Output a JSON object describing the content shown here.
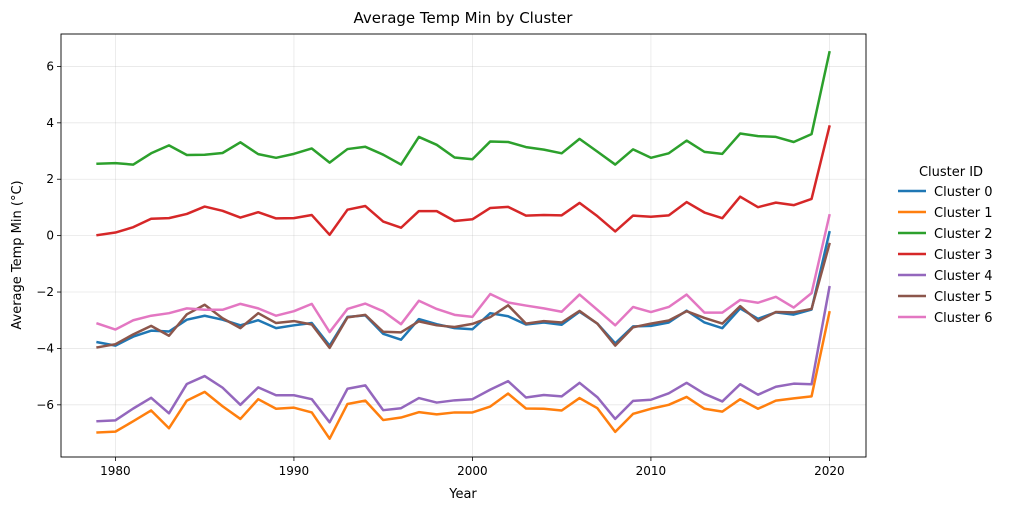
{
  "chart_data": {
    "type": "line",
    "title": "Average Temp Min by Cluster",
    "xlabel": "Year",
    "ylabel": "Average Temp Min (°C)",
    "xlim": [
      1976.95,
      2022.05
    ],
    "ylim": [
      -7.85,
      7.15
    ],
    "xticks": [
      1980,
      1990,
      2000,
      2010,
      2020
    ],
    "yticks": [
      -6,
      -4,
      -2,
      0,
      2,
      4,
      6
    ],
    "grid": true,
    "legend": {
      "title": "Cluster ID",
      "placement": "right-outside"
    },
    "x": [
      1979,
      1980,
      1981,
      1982,
      1983,
      1984,
      1985,
      1986,
      1987,
      1988,
      1989,
      1990,
      1991,
      1992,
      1993,
      1994,
      1995,
      1996,
      1997,
      1998,
      1999,
      2000,
      2001,
      2002,
      2003,
      2004,
      2005,
      2006,
      2007,
      2008,
      2009,
      2010,
      2011,
      2012,
      2013,
      2014,
      2015,
      2016,
      2017,
      2018,
      2019,
      2020
    ],
    "series": [
      {
        "name": "Cluster 0",
        "color": "#1f77b4",
        "values": [
          -3.78,
          -3.9,
          -3.58,
          -3.37,
          -3.4,
          -2.98,
          -2.84,
          -2.98,
          -3.18,
          -3.0,
          -3.28,
          -3.18,
          -3.1,
          -3.9,
          -2.88,
          -2.83,
          -3.48,
          -3.69,
          -2.96,
          -3.14,
          -3.28,
          -3.32,
          -2.75,
          -2.86,
          -3.15,
          -3.08,
          -3.16,
          -2.7,
          -3.12,
          -3.82,
          -3.22,
          -3.2,
          -3.08,
          -2.66,
          -3.08,
          -3.28,
          -2.58,
          -2.95,
          -2.72,
          -2.8,
          -2.62,
          0.12
        ]
      },
      {
        "name": "Cluster 1",
        "color": "#ff7f0e",
        "values": [
          -6.98,
          -6.95,
          -6.58,
          -6.2,
          -6.83,
          -5.85,
          -5.54,
          -6.05,
          -6.5,
          -5.8,
          -6.14,
          -6.1,
          -6.27,
          -7.2,
          -5.97,
          -5.85,
          -6.54,
          -6.45,
          -6.26,
          -6.34,
          -6.27,
          -6.27,
          -6.06,
          -5.6,
          -6.13,
          -6.14,
          -6.2,
          -5.76,
          -6.12,
          -6.96,
          -6.32,
          -6.14,
          -6.0,
          -5.72,
          -6.14,
          -6.24,
          -5.8,
          -6.14,
          -5.85,
          -5.77,
          -5.7,
          -2.72
        ]
      },
      {
        "name": "Cluster 2",
        "color": "#2ca02c",
        "values": [
          2.55,
          2.57,
          2.52,
          2.92,
          3.2,
          2.86,
          2.87,
          2.93,
          3.31,
          2.89,
          2.76,
          2.9,
          3.09,
          2.59,
          3.07,
          3.15,
          2.87,
          2.52,
          3.5,
          3.22,
          2.77,
          2.71,
          3.34,
          3.32,
          3.14,
          3.05,
          2.92,
          3.43,
          2.98,
          2.52,
          3.06,
          2.76,
          2.92,
          3.37,
          2.97,
          2.9,
          3.62,
          3.53,
          3.5,
          3.32,
          3.6,
          6.5
        ]
      },
      {
        "name": "Cluster 3",
        "color": "#d62728",
        "values": [
          0.02,
          0.11,
          0.3,
          0.6,
          0.62,
          0.77,
          1.03,
          0.88,
          0.64,
          0.83,
          0.61,
          0.62,
          0.73,
          0.03,
          0.92,
          1.05,
          0.5,
          0.28,
          0.87,
          0.87,
          0.52,
          0.58,
          0.98,
          1.02,
          0.71,
          0.73,
          0.72,
          1.16,
          0.69,
          0.15,
          0.71,
          0.67,
          0.72,
          1.19,
          0.82,
          0.62,
          1.38,
          1.01,
          1.17,
          1.08,
          1.3,
          3.87
        ]
      },
      {
        "name": "Cluster 4",
        "color": "#9467bd",
        "values": [
          -6.58,
          -6.55,
          -6.13,
          -5.75,
          -6.3,
          -5.26,
          -4.98,
          -5.39,
          -6.0,
          -5.38,
          -5.66,
          -5.66,
          -5.8,
          -6.62,
          -5.43,
          -5.31,
          -6.19,
          -6.12,
          -5.76,
          -5.92,
          -5.84,
          -5.8,
          -5.46,
          -5.16,
          -5.74,
          -5.65,
          -5.7,
          -5.22,
          -5.73,
          -6.5,
          -5.86,
          -5.82,
          -5.59,
          -5.22,
          -5.61,
          -5.88,
          -5.27,
          -5.64,
          -5.36,
          -5.25,
          -5.27,
          -1.83
        ]
      },
      {
        "name": "Cluster 5",
        "color": "#8c564b",
        "values": [
          -3.96,
          -3.85,
          -3.5,
          -3.2,
          -3.55,
          -2.79,
          -2.45,
          -2.93,
          -3.28,
          -2.75,
          -3.1,
          -3.03,
          -3.15,
          -3.98,
          -2.9,
          -2.81,
          -3.41,
          -3.43,
          -3.04,
          -3.18,
          -3.24,
          -3.13,
          -2.89,
          -2.47,
          -3.12,
          -3.03,
          -3.08,
          -2.67,
          -3.12,
          -3.9,
          -3.25,
          -3.12,
          -3.01,
          -2.68,
          -2.92,
          -3.12,
          -2.5,
          -3.03,
          -2.71,
          -2.72,
          -2.6,
          -0.3
        ]
      },
      {
        "name": "Cluster 6",
        "color": "#e377c2",
        "values": [
          -3.12,
          -3.33,
          -3.0,
          -2.84,
          -2.75,
          -2.58,
          -2.63,
          -2.63,
          -2.42,
          -2.58,
          -2.84,
          -2.68,
          -2.42,
          -3.42,
          -2.6,
          -2.41,
          -2.68,
          -3.14,
          -2.31,
          -2.6,
          -2.81,
          -2.88,
          -2.07,
          -2.37,
          -2.48,
          -2.58,
          -2.7,
          -2.09,
          -2.63,
          -3.18,
          -2.53,
          -2.71,
          -2.53,
          -2.09,
          -2.73,
          -2.73,
          -2.28,
          -2.38,
          -2.17,
          -2.55,
          -2.04,
          0.72
        ]
      }
    ]
  }
}
